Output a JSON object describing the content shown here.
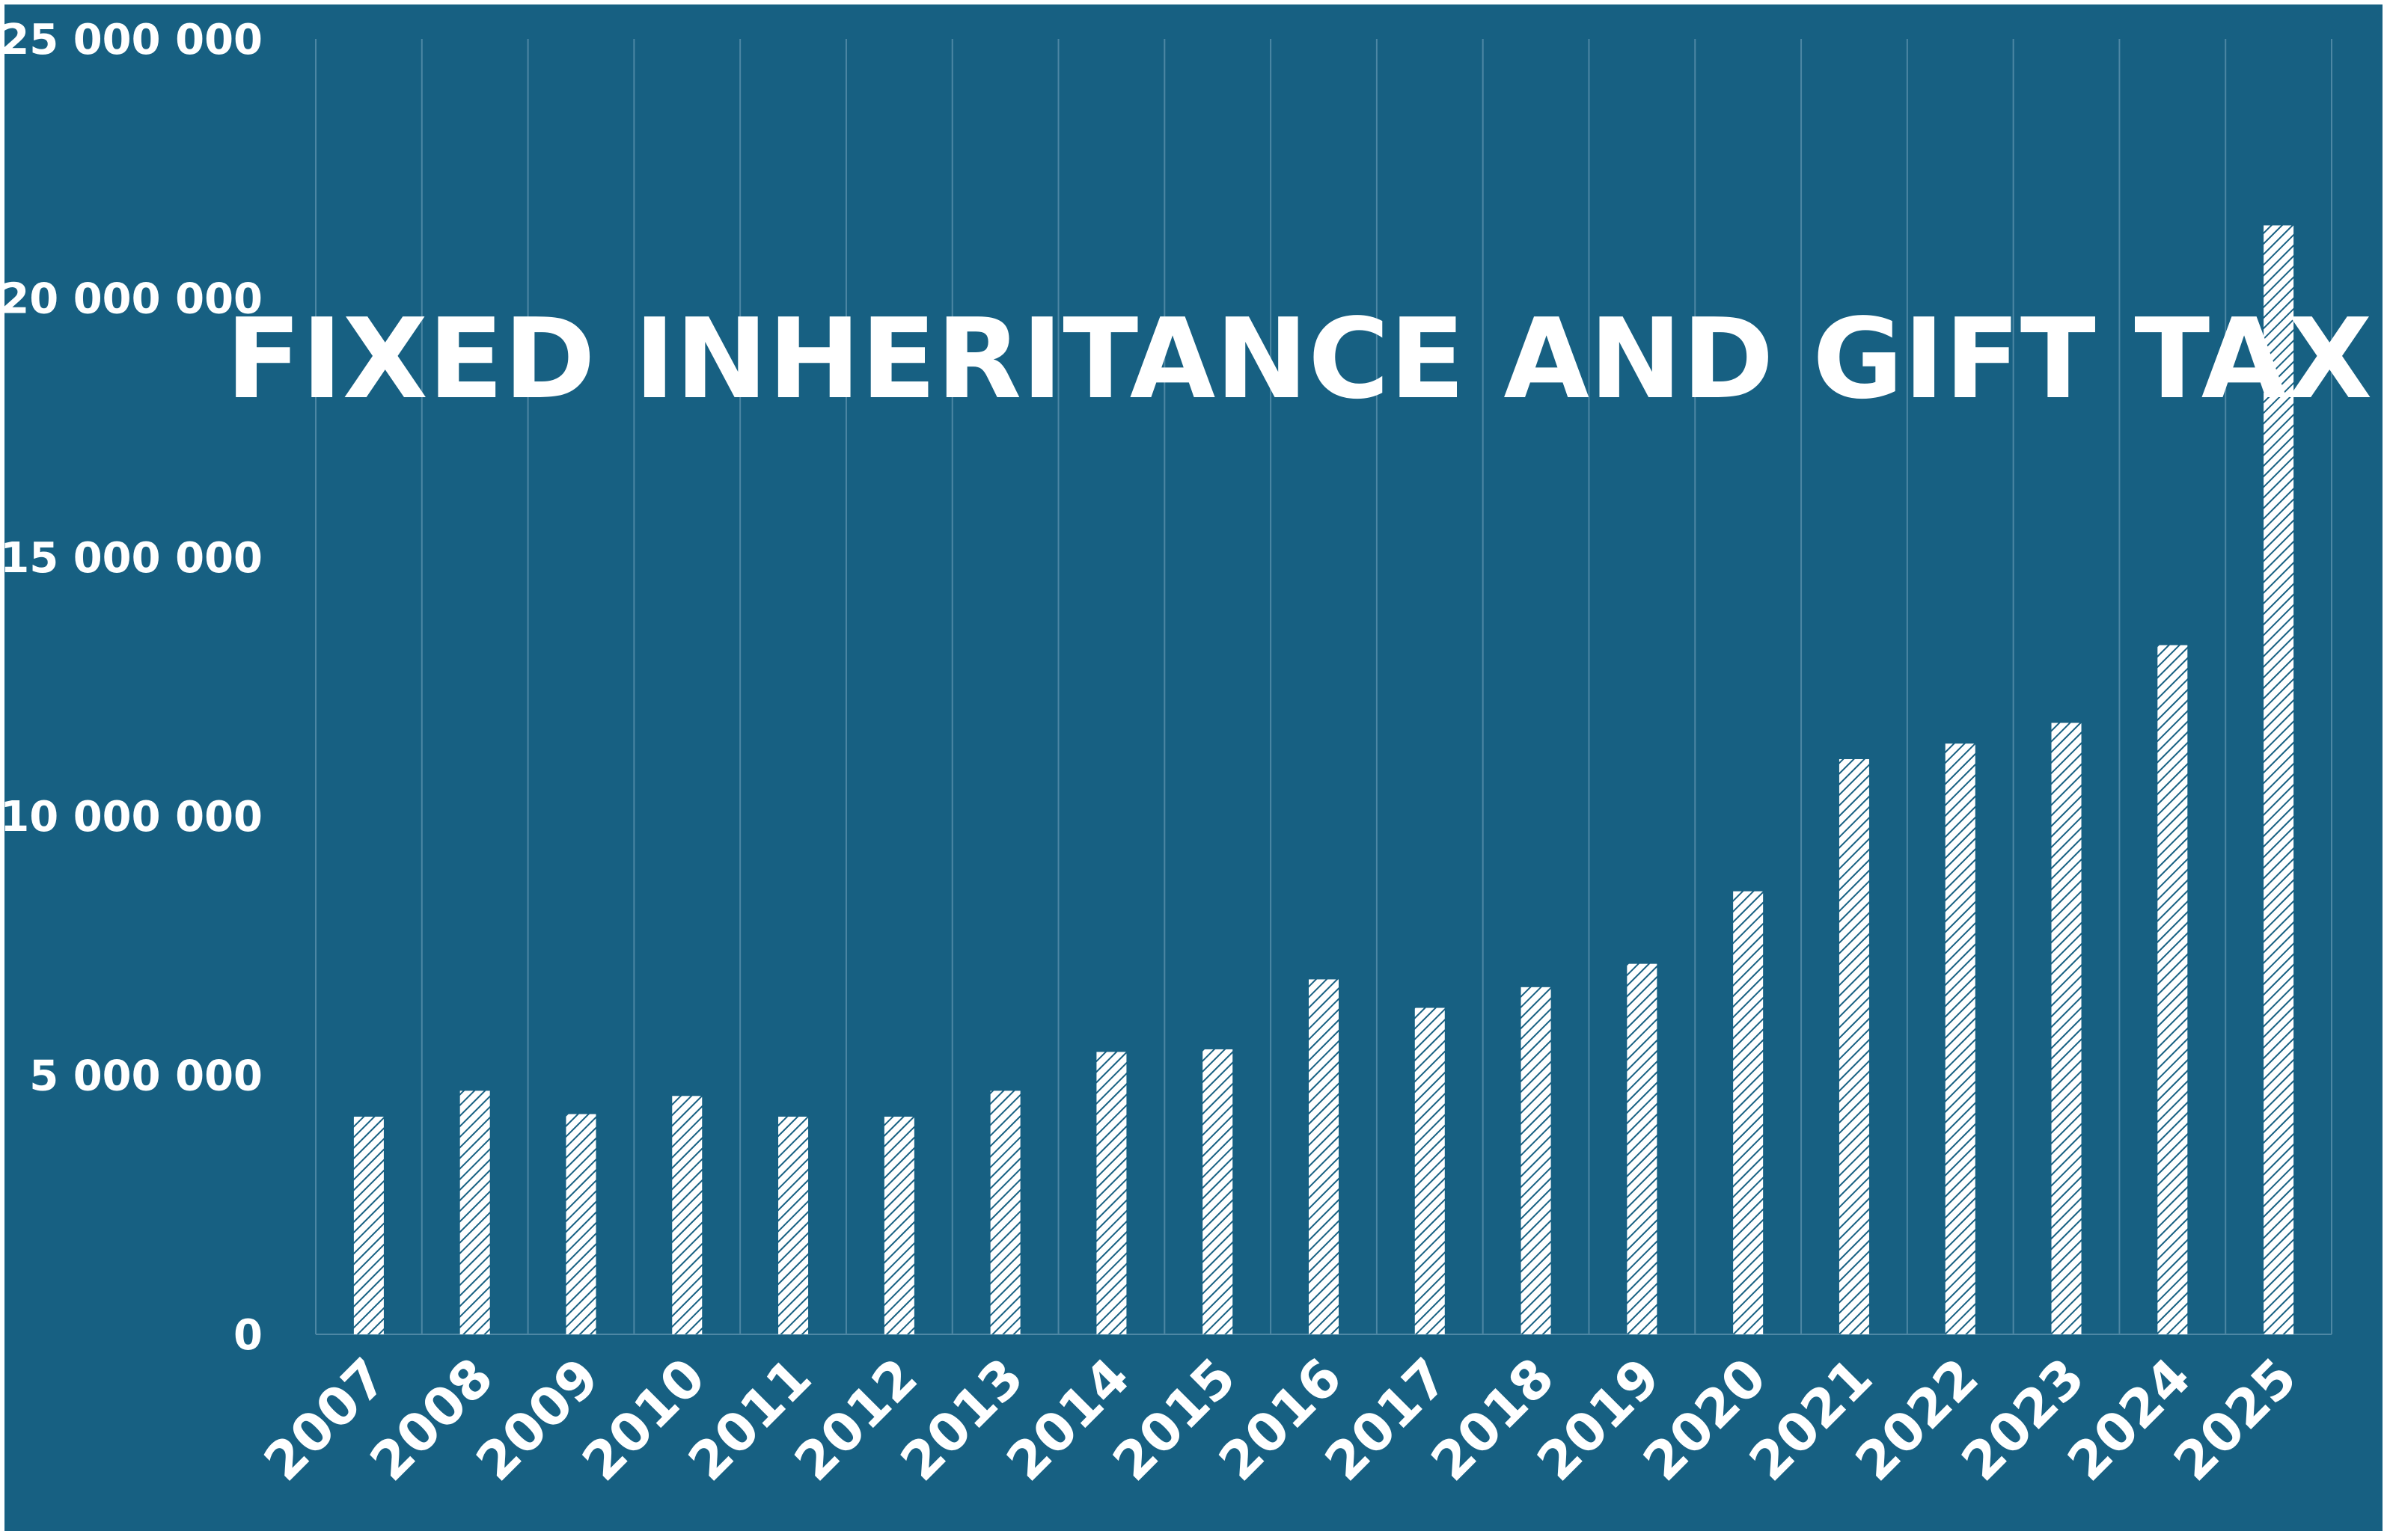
{
  "chart_data": {
    "type": "bar",
    "title": "FIXED INHERITANCE AND GIFT TAX",
    "xlabel": "",
    "ylabel": "",
    "categories": [
      "2007",
      "2008",
      "2009",
      "2010",
      "2011",
      "2012",
      "2013",
      "2014",
      "2015",
      "2016",
      "2017",
      "2018",
      "2019",
      "2020",
      "2021",
      "2022",
      "2023",
      "2024",
      "2025"
    ],
    "values": [
      4200000,
      4700000,
      4250000,
      4600000,
      4200000,
      4200000,
      4700000,
      5450000,
      5500000,
      6850000,
      6300000,
      6700000,
      7150000,
      8550000,
      11100000,
      11400000,
      11800000,
      13300000,
      21400000
    ],
    "ylim": [
      0,
      25000000
    ],
    "yticks": [
      0,
      5000000,
      10000000,
      15000000,
      20000000,
      25000000
    ],
    "ytick_labels": [
      "0",
      "5 000 000",
      "10 000 000",
      "15 000 000",
      "20 000 000",
      "25 000 000"
    ],
    "grid": "vertical",
    "legend": "none",
    "colors": {
      "background": "#176082",
      "bar_fill": "#ffffff",
      "bar_hatch": "#176082",
      "gridline": "#4d87a4",
      "text": "#ffffff"
    }
  }
}
